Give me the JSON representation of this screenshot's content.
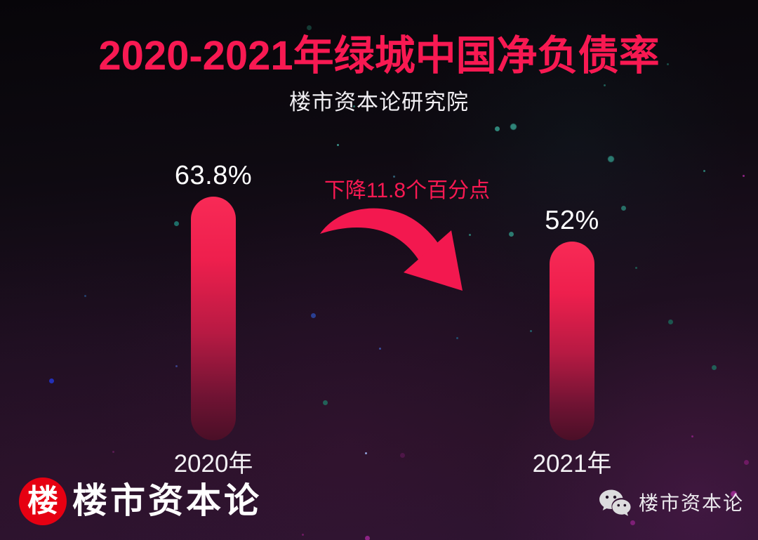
{
  "header": {
    "title": "2020-2021年绿城中国净负债率",
    "subtitle": "楼市资本论研究院"
  },
  "chart_data": {
    "type": "bar",
    "title": "2020-2021年绿城中国净负债率",
    "subtitle": "楼市资本论研究院",
    "categories": [
      "2020年",
      "2021年"
    ],
    "values": [
      63.8,
      52
    ],
    "value_labels": [
      "63.8%",
      "52%"
    ],
    "unit": "%",
    "annotation": "下降11.8个百分点",
    "ylim": [
      0,
      70
    ],
    "grid": false,
    "legend": false,
    "bar_color_top": "#f82a56",
    "bar_color_bottom": "#4a0f27"
  },
  "footer": {
    "logo_char": "楼",
    "brand_name": "楼市资本论",
    "wechat_name": "楼市资本论"
  },
  "icons": {
    "wechat": "chat-bubbles",
    "brand_logo": "red-circle-lou",
    "arrow": "curved-down-right-arrow"
  },
  "colors": {
    "accent_pink": "#f81952",
    "logo_red": "#e60012",
    "text_white": "#ffffff",
    "background_top": "#070509",
    "background_bottom": "#2c1430"
  }
}
